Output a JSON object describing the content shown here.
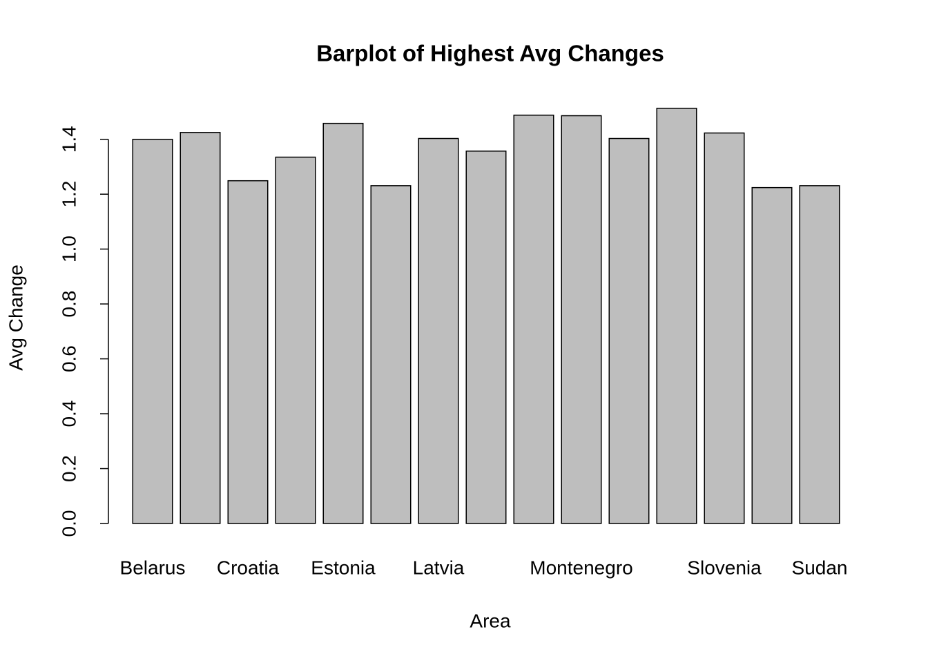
{
  "chart_data": {
    "type": "bar",
    "title": "Barplot of Highest Avg Changes",
    "x_label": "Area",
    "y_label": "Avg Change",
    "categories": [
      "Belarus",
      null,
      "Croatia",
      null,
      "Estonia",
      null,
      "Latvia",
      null,
      null,
      "Montenegro",
      null,
      null,
      "Slovenia",
      null,
      "Sudan"
    ],
    "values": [
      1.4,
      1.425,
      1.249,
      1.335,
      1.458,
      1.231,
      1.403,
      1.357,
      1.488,
      1.486,
      1.403,
      1.513,
      1.423,
      1.224,
      1.231
    ],
    "color": "#bebebe",
    "ylim": [
      0,
      1.51
    ],
    "yticks": [
      {
        "value": 0,
        "label": "0.0"
      },
      0.2,
      0.4,
      0.6,
      0.8,
      {
        "value": 1,
        "label": "1.0"
      },
      1.2,
      1.4
    ],
    "grid": false
  }
}
